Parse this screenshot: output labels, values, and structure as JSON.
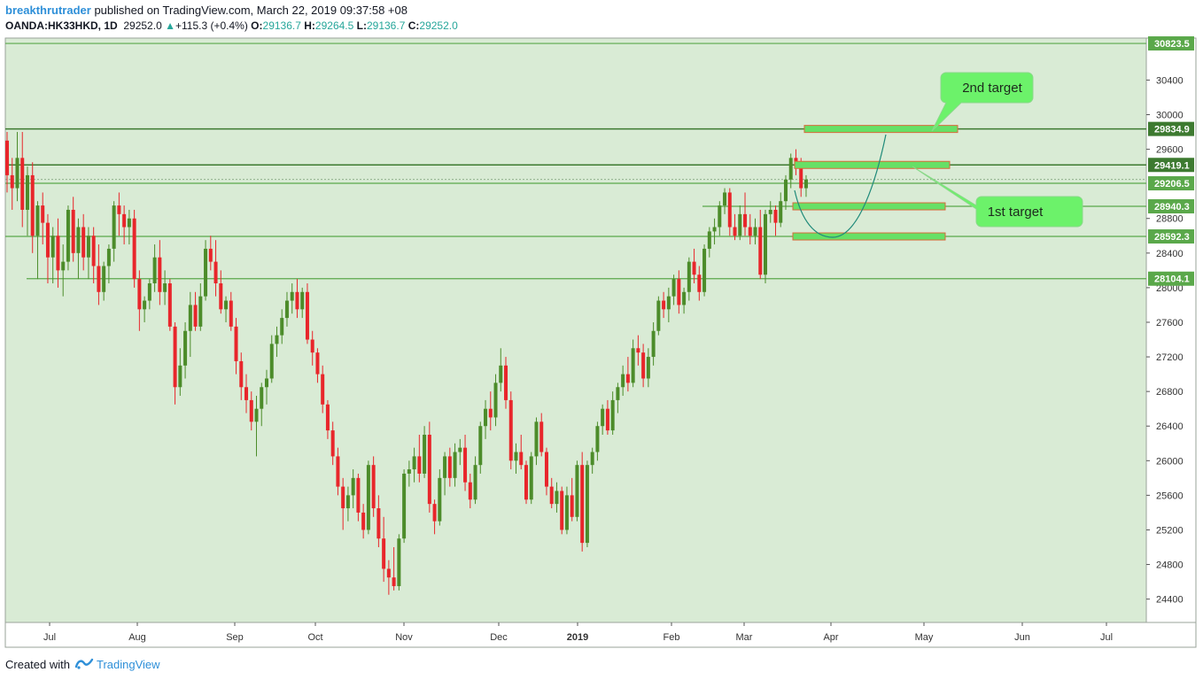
{
  "header": {
    "author": "breakthrutrader",
    "published_text": "published on TradingView.com, March 22, 2019 09:37:58 +08",
    "symbol": "OANDA:HK33HKD, 1D",
    "last": "29252.0",
    "change": "+115.3 (+0.4%)",
    "o_label": "O:",
    "o_value": "29136.7",
    "h_label": "H:",
    "h_value": "29264.5",
    "l_label": "L:",
    "l_value": "29136.7",
    "c_label": "C:",
    "c_value": "29252.0"
  },
  "footer": {
    "created_with": "Created with",
    "brand": "TradingView"
  },
  "colors": {
    "background": "#d9ebd5",
    "up": "#4c8c2a",
    "down": "#e8262b",
    "level_line": "#5aa84a",
    "target_fill": "#66e066",
    "target_border": "#d86a3a",
    "callout": "#6cf26a",
    "curve": "#1f8a7a"
  },
  "chart_data": {
    "type": "candlestick",
    "y_ticks": [
      24400,
      24800,
      25200,
      25600,
      26000,
      26400,
      26800,
      27200,
      27600,
      28000,
      28400,
      28800,
      29600,
      30000,
      30400
    ],
    "x_ticks": [
      "Jul",
      "Aug",
      "Sep",
      "Oct",
      "Nov",
      "Dec",
      "2019",
      "Feb",
      "Mar",
      "Apr",
      "May",
      "Jun",
      "Jul"
    ],
    "x_tick_bold": [
      false,
      false,
      false,
      false,
      false,
      false,
      true,
      false,
      false,
      false,
      false,
      false,
      false
    ],
    "levels": [
      {
        "value": 30823.5,
        "label": "30823.5",
        "dark": false
      },
      {
        "value": 29834.9,
        "label": "29834.9",
        "dark": true
      },
      {
        "value": 29419.1,
        "label": "29419.1",
        "dark": true
      },
      {
        "value": 29206.5,
        "label": "29206.5",
        "dark": false
      },
      {
        "value": 28940.3,
        "label": "28940.3",
        "dark": false
      },
      {
        "value": 28592.3,
        "label": "28592.3",
        "dark": false
      },
      {
        "value": 28104.1,
        "label": "28104.1",
        "dark": false
      }
    ],
    "annotations": [
      "2nd target",
      "1st target"
    ],
    "target_zones": [
      {
        "value": 29834.9
      },
      {
        "value": 29419.1
      },
      {
        "value": 28940.3
      },
      {
        "value": 28592.3
      }
    ],
    "candles": [
      [
        29700,
        29800,
        29100,
        29300
      ],
      [
        29300,
        29500,
        28900,
        29150
      ],
      [
        29150,
        29800,
        29000,
        29500
      ],
      [
        29500,
        29800,
        28700,
        28900
      ],
      [
        28900,
        29400,
        28600,
        29300
      ],
      [
        29300,
        29450,
        28400,
        28600
      ],
      [
        28600,
        29000,
        28100,
        28950
      ],
      [
        28950,
        29100,
        28500,
        28750
      ],
      [
        28750,
        28850,
        28050,
        28350
      ],
      [
        28350,
        28700,
        28050,
        28600
      ],
      [
        28600,
        28800,
        28000,
        28200
      ],
      [
        28200,
        28500,
        27900,
        28300
      ],
      [
        28300,
        28950,
        28200,
        28900
      ],
      [
        28900,
        29050,
        28300,
        28400
      ],
      [
        28400,
        28800,
        28100,
        28700
      ],
      [
        28700,
        28850,
        28200,
        28350
      ],
      [
        28350,
        28700,
        28100,
        28600
      ],
      [
        28600,
        28700,
        28050,
        28250
      ],
      [
        28250,
        28500,
        27800,
        27950
      ],
      [
        27950,
        28300,
        27850,
        28250
      ],
      [
        28250,
        28500,
        28050,
        28450
      ],
      [
        28450,
        29000,
        28300,
        28950
      ],
      [
        28950,
        29100,
        28600,
        28850
      ],
      [
        28850,
        28950,
        28500,
        28700
      ],
      [
        28700,
        28900,
        28500,
        28800
      ],
      [
        28800,
        28900,
        28000,
        28100
      ],
      [
        28100,
        28200,
        27500,
        27750
      ],
      [
        27750,
        27900,
        27600,
        27850
      ],
      [
        27850,
        28100,
        27750,
        28050
      ],
      [
        28050,
        28500,
        27950,
        28350
      ],
      [
        28350,
        28550,
        27800,
        27950
      ],
      [
        27950,
        28200,
        27800,
        28050
      ],
      [
        28050,
        28100,
        27500,
        27550
      ],
      [
        27550,
        27600,
        26650,
        26850
      ],
      [
        26850,
        27300,
        26750,
        27100
      ],
      [
        27100,
        27600,
        26950,
        27500
      ],
      [
        27500,
        27950,
        27200,
        27800
      ],
      [
        27800,
        27950,
        27500,
        27550
      ],
      [
        27550,
        28050,
        27500,
        27900
      ],
      [
        27900,
        28550,
        27850,
        28450
      ],
      [
        28450,
        28600,
        28200,
        28300
      ],
      [
        28300,
        28550,
        27900,
        28050
      ],
      [
        28050,
        28200,
        27700,
        27750
      ],
      [
        27750,
        27900,
        27600,
        27850
      ],
      [
        27850,
        27950,
        27500,
        27550
      ],
      [
        27550,
        27650,
        27000,
        27150
      ],
      [
        27150,
        27250,
        26700,
        26850
      ],
      [
        26850,
        27000,
        26550,
        26700
      ],
      [
        26700,
        26800,
        26350,
        26450
      ],
      [
        26450,
        26750,
        26050,
        26600
      ],
      [
        26600,
        26900,
        26400,
        26850
      ],
      [
        26850,
        27050,
        26650,
        26950
      ],
      [
        26950,
        27450,
        26900,
        27350
      ],
      [
        27350,
        27550,
        27200,
        27450
      ],
      [
        27450,
        27750,
        27350,
        27650
      ],
      [
        27650,
        27950,
        27550,
        27850
      ],
      [
        27850,
        28050,
        27700,
        27950
      ],
      [
        27950,
        28100,
        27650,
        27750
      ],
      [
        27750,
        28000,
        27650,
        27950
      ],
      [
        27950,
        28050,
        27350,
        27400
      ],
      [
        27400,
        27500,
        27100,
        27250
      ],
      [
        27250,
        27300,
        26900,
        27000
      ],
      [
        27000,
        27100,
        26550,
        26650
      ],
      [
        26650,
        26700,
        26250,
        26350
      ],
      [
        26350,
        26450,
        25950,
        26050
      ],
      [
        26050,
        26150,
        25600,
        25700
      ],
      [
        25700,
        25800,
        25200,
        25450
      ],
      [
        25450,
        25700,
        25300,
        25600
      ],
      [
        25600,
        25900,
        25450,
        25800
      ],
      [
        25800,
        25850,
        25300,
        25400
      ],
      [
        25400,
        25500,
        25100,
        25200
      ],
      [
        25200,
        26000,
        25150,
        25950
      ],
      [
        25950,
        26050,
        25350,
        25450
      ],
      [
        25450,
        25600,
        25000,
        25100
      ],
      [
        25100,
        25350,
        24600,
        24750
      ],
      [
        24750,
        24850,
        24450,
        24650
      ],
      [
        24650,
        25000,
        24500,
        24550
      ],
      [
        24550,
        25150,
        24500,
        25100
      ],
      [
        25100,
        25900,
        25050,
        25850
      ],
      [
        25850,
        26000,
        25700,
        25900
      ],
      [
        25900,
        26150,
        25750,
        26050
      ],
      [
        26050,
        26300,
        25750,
        25850
      ],
      [
        25850,
        26400,
        25800,
        26300
      ],
      [
        26300,
        26450,
        25400,
        25500
      ],
      [
        25500,
        25550,
        25150,
        25300
      ],
      [
        25300,
        25900,
        25250,
        25800
      ],
      [
        25800,
        26100,
        25600,
        26050
      ],
      [
        26050,
        26150,
        25700,
        25800
      ],
      [
        25800,
        26200,
        25700,
        26100
      ],
      [
        26100,
        26250,
        25950,
        26150
      ],
      [
        26150,
        26300,
        25650,
        25750
      ],
      [
        25750,
        25850,
        25450,
        25550
      ],
      [
        25550,
        26050,
        25500,
        25950
      ],
      [
        25950,
        26450,
        25850,
        26400
      ],
      [
        26400,
        26700,
        26250,
        26600
      ],
      [
        26600,
        26800,
        26350,
        26500
      ],
      [
        26500,
        27000,
        26400,
        26900
      ],
      [
        26900,
        27300,
        26800,
        27100
      ],
      [
        27100,
        27200,
        26600,
        26700
      ],
      [
        26700,
        26800,
        25900,
        26000
      ],
      [
        26000,
        26200,
        25850,
        26100
      ],
      [
        26100,
        26300,
        25900,
        25950
      ],
      [
        25950,
        26000,
        25500,
        25550
      ],
      [
        25550,
        26100,
        25500,
        26050
      ],
      [
        26050,
        26500,
        25950,
        26450
      ],
      [
        26450,
        26550,
        26050,
        26100
      ],
      [
        26100,
        26150,
        25600,
        25700
      ],
      [
        25700,
        25800,
        25450,
        25500
      ],
      [
        25500,
        25750,
        25400,
        25650
      ],
      [
        25650,
        25700,
        25150,
        25200
      ],
      [
        25200,
        25700,
        25150,
        25600
      ],
      [
        25600,
        25800,
        25300,
        25350
      ],
      [
        25350,
        26000,
        25300,
        25950
      ],
      [
        25950,
        26100,
        24950,
        25050
      ],
      [
        25050,
        26000,
        25000,
        25950
      ],
      [
        25950,
        26150,
        25850,
        26100
      ],
      [
        26100,
        26450,
        26000,
        26400
      ],
      [
        26400,
        26650,
        26300,
        26600
      ],
      [
        26600,
        26700,
        26300,
        26350
      ],
      [
        26350,
        26800,
        26300,
        26700
      ],
      [
        26700,
        26900,
        26550,
        26850
      ],
      [
        26850,
        27100,
        26750,
        27000
      ],
      [
        27000,
        27200,
        26800,
        26900
      ],
      [
        26900,
        27400,
        26850,
        27300
      ],
      [
        27300,
        27450,
        27100,
        27250
      ],
      [
        27250,
        27350,
        26850,
        26950
      ],
      [
        26950,
        27300,
        26850,
        27200
      ],
      [
        27200,
        27600,
        27100,
        27500
      ],
      [
        27500,
        27900,
        27450,
        27850
      ],
      [
        27850,
        27950,
        27650,
        27750
      ],
      [
        27750,
        28000,
        27600,
        27900
      ],
      [
        27900,
        28150,
        27800,
        28100
      ],
      [
        28100,
        28200,
        27700,
        27800
      ],
      [
        27800,
        28000,
        27700,
        27950
      ],
      [
        27950,
        28350,
        27850,
        28300
      ],
      [
        28300,
        28450,
        28050,
        28150
      ],
      [
        28150,
        28250,
        27850,
        27950
      ],
      [
        27950,
        28500,
        27900,
        28450
      ],
      [
        28450,
        28700,
        28350,
        28650
      ],
      [
        28650,
        28800,
        28500,
        28700
      ],
      [
        28700,
        29000,
        28600,
        28950
      ],
      [
        28950,
        29150,
        28850,
        29100
      ],
      [
        29100,
        29150,
        28600,
        28700
      ],
      [
        28700,
        28850,
        28550,
        28600
      ],
      [
        28600,
        28950,
        28550,
        28850
      ],
      [
        28850,
        29100,
        28600,
        28700
      ],
      [
        28700,
        28850,
        28500,
        28600
      ],
      [
        28600,
        28800,
        28500,
        28700
      ],
      [
        28700,
        28900,
        28100,
        28150
      ],
      [
        28150,
        28900,
        28050,
        28850
      ],
      [
        28850,
        29000,
        28750,
        28900
      ],
      [
        28900,
        28950,
        28600,
        28750
      ],
      [
        28750,
        29100,
        28700,
        29000
      ],
      [
        29000,
        29300,
        28900,
        29250
      ],
      [
        29250,
        29550,
        29150,
        29500
      ],
      [
        29500,
        29600,
        29300,
        29450
      ],
      [
        29450,
        29500,
        29050,
        29150
      ],
      [
        29150,
        29300,
        29050,
        29250
      ]
    ]
  }
}
